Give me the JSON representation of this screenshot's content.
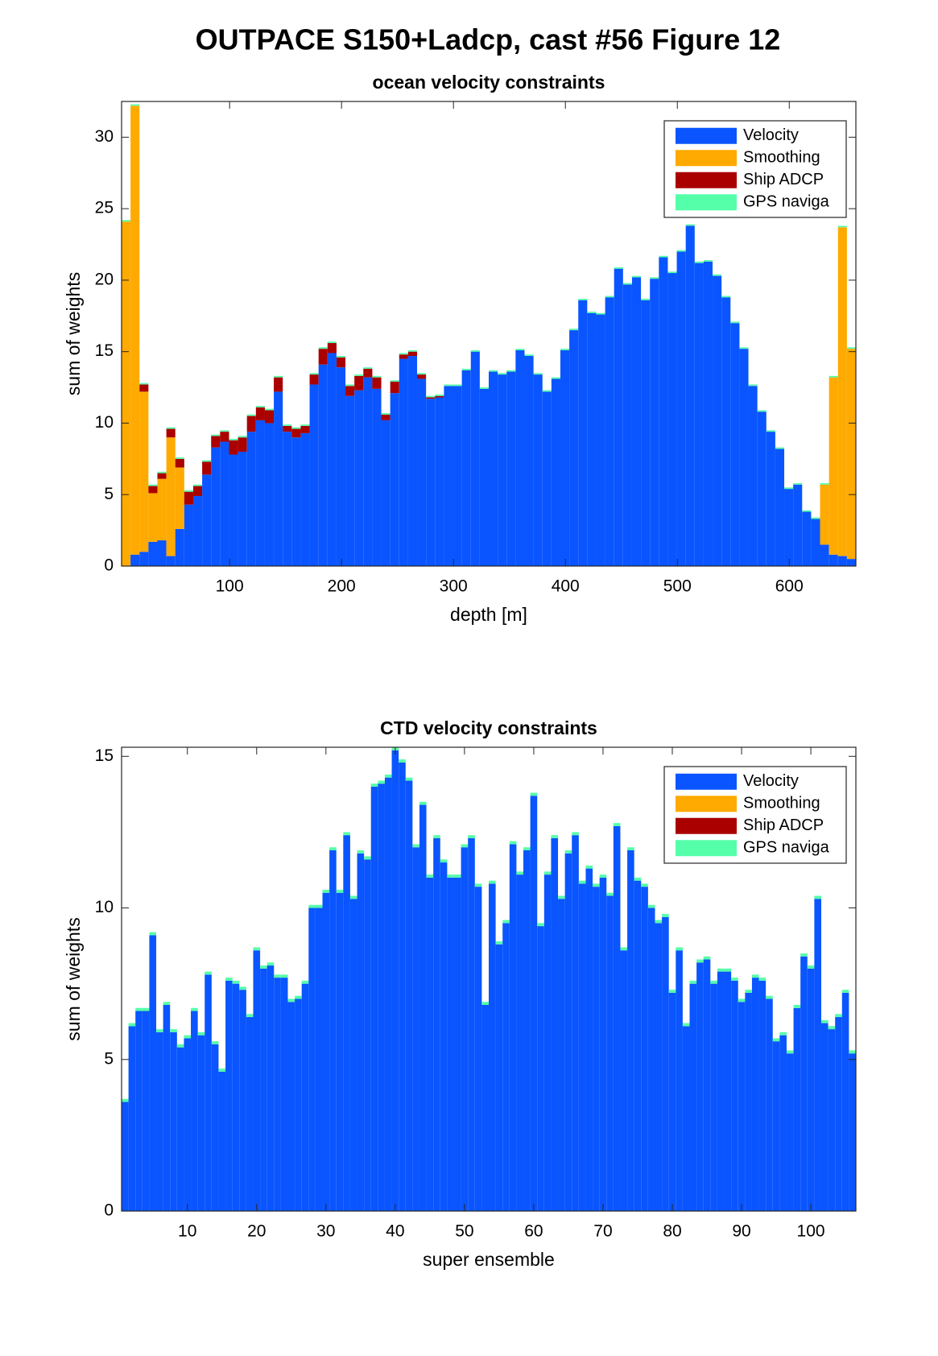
{
  "title": "OUTPACE S150+Ladcp, cast #56  Figure 12",
  "chart_data": [
    {
      "type": "histogram",
      "stacked": true,
      "title": "ocean velocity constraints",
      "xlabel": "depth [m]",
      "ylabel": "sum of weights",
      "bins": [
        3.5,
        11.5,
        19.5,
        27.5,
        35.5,
        43.5,
        51.5,
        59.5,
        67.5,
        75.5,
        83.5,
        91.5,
        99.5,
        107.5,
        115.5,
        123.5,
        131.5,
        139.5,
        147.5,
        155.5,
        163.5,
        171.5,
        179.5,
        187.5,
        195.5,
        203.5,
        211.5,
        219.5,
        227.5,
        235.5,
        243.5,
        251.5,
        259.5,
        267.5,
        275.5,
        283.5,
        291.5,
        299.5,
        307.5,
        315.5,
        323.5,
        331.5,
        339.5,
        347.5,
        355.5,
        363.5,
        371.5,
        379.5,
        387.5,
        395.5,
        403.5,
        411.5,
        419.5,
        427.5,
        435.5,
        443.5,
        451.5,
        459.5,
        467.5,
        475.5,
        483.5,
        491.5,
        499.5,
        507.5,
        515.5,
        523.5,
        531.5,
        539.5,
        547.5,
        555.5,
        563.5,
        571.5,
        579.5,
        587.5,
        595.5,
        603.5,
        611.5,
        619.5,
        627.5,
        635.5,
        643.5,
        651.5,
        659.5
      ],
      "series": [
        {
          "name": "Velocity",
          "color": "#0a55ff",
          "values": [
            0,
            0.8,
            1.0,
            1.7,
            1.8,
            0.7,
            2.6,
            4.3,
            4.9,
            6.4,
            8.3,
            8.7,
            7.8,
            8.0,
            9.4,
            10.2,
            10.0,
            12.2,
            9.4,
            9.0,
            9.3,
            12.7,
            14.1,
            14.9,
            13.9,
            11.9,
            12.3,
            13.2,
            12.4,
            10.2,
            12.1,
            14.5,
            14.7,
            13.1,
            11.7,
            11.8,
            12.6,
            12.6,
            13.7,
            15.0,
            12.4,
            13.6,
            13.4,
            13.6,
            15.1,
            14.7,
            13.4,
            12.2,
            13.1,
            15.1,
            16.5,
            18.6,
            17.7,
            17.6,
            18.8,
            20.8,
            19.7,
            20.2,
            18.6,
            20.1,
            21.6,
            20.5,
            22.0,
            23.8,
            21.2,
            21.3,
            20.3,
            18.8,
            17.0,
            15.2,
            12.6,
            10.8,
            9.4,
            8.2,
            5.4,
            5.7,
            3.8,
            3.3,
            1.5,
            0.8,
            0.7,
            0.5
          ]
        },
        {
          "name": "Smoothing",
          "color": "#ffaa00",
          "values": [
            24.1,
            31.4,
            11.2,
            3.4,
            4.3,
            8.3,
            4.3,
            0,
            0,
            0,
            0,
            0,
            0,
            0,
            0,
            0,
            0,
            0,
            0,
            0,
            0,
            0,
            0,
            0,
            0,
            0,
            0,
            0,
            0,
            0,
            0,
            0,
            0,
            0,
            0,
            0,
            0,
            0,
            0,
            0,
            0,
            0,
            0,
            0,
            0,
            0,
            0,
            0,
            0,
            0,
            0,
            0,
            0,
            0,
            0,
            0,
            0,
            0,
            0,
            0,
            0,
            0,
            0,
            0,
            0,
            0,
            0,
            0,
            0,
            0,
            0,
            0,
            0,
            0,
            0,
            0,
            0,
            0,
            4.2,
            12.4,
            23.0,
            14.7
          ]
        },
        {
          "name": "Ship ADCP",
          "color": "#aa0000",
          "values": [
            0,
            0,
            0.5,
            0.5,
            0.4,
            0.6,
            0.6,
            0.9,
            0.7,
            0.9,
            0.8,
            0.7,
            1.0,
            1.0,
            1.1,
            0.9,
            0.9,
            1.0,
            0.4,
            0.6,
            0.5,
            0.7,
            1.1,
            0.7,
            0.7,
            0.7,
            1.0,
            0.6,
            0.8,
            0.4,
            0.8,
            0.3,
            0.3,
            0.3,
            0.1,
            0.1,
            0,
            0,
            0,
            0,
            0,
            0,
            0,
            0,
            0,
            0,
            0,
            0,
            0,
            0,
            0,
            0,
            0,
            0,
            0,
            0,
            0,
            0,
            0,
            0,
            0,
            0,
            0,
            0,
            0,
            0,
            0,
            0,
            0,
            0,
            0,
            0,
            0,
            0,
            0,
            0,
            0,
            0,
            0,
            0,
            0,
            0
          ]
        },
        {
          "name": "GPS naviga",
          "color": "#55ffaa",
          "values": [
            0.1,
            0.1,
            0.1,
            0.1,
            0.1,
            0.1,
            0.1,
            0.1,
            0.1,
            0.1,
            0.1,
            0.1,
            0.1,
            0.1,
            0.1,
            0.1,
            0.1,
            0.1,
            0.1,
            0.1,
            0.1,
            0.1,
            0.1,
            0.1,
            0.1,
            0.1,
            0.1,
            0.1,
            0.1,
            0.1,
            0.1,
            0.1,
            0.1,
            0.1,
            0.1,
            0.1,
            0.1,
            0.1,
            0.1,
            0.1,
            0.1,
            0.1,
            0.1,
            0.1,
            0.1,
            0.1,
            0.1,
            0.1,
            0.1,
            0.1,
            0.1,
            0.1,
            0.1,
            0.1,
            0.1,
            0.1,
            0.1,
            0.1,
            0.1,
            0.1,
            0.1,
            0.1,
            0.1,
            0.1,
            0.1,
            0.1,
            0.1,
            0.1,
            0.1,
            0.1,
            0.1,
            0.1,
            0.1,
            0.1,
            0.1,
            0.1,
            0.1,
            0.1,
            0.1,
            0.1,
            0.1,
            0.1
          ]
        }
      ],
      "xlim": [
        3.5,
        659.5
      ],
      "xticks": [
        100,
        200,
        300,
        400,
        500,
        600
      ],
      "ylim": [
        0,
        32.5
      ],
      "yticks": [
        0,
        5,
        10,
        15,
        20,
        25,
        30
      ],
      "legend": "northeast",
      "grid": false
    },
    {
      "type": "bar",
      "stacked": true,
      "title": "CTD velocity constraints",
      "xlabel": "super ensemble",
      "ylabel": "sum of weights",
      "x": [
        1,
        2,
        3,
        4,
        5,
        6,
        7,
        8,
        9,
        10,
        11,
        12,
        13,
        14,
        15,
        16,
        17,
        18,
        19,
        20,
        21,
        22,
        23,
        24,
        25,
        26,
        27,
        28,
        29,
        30,
        31,
        32,
        33,
        34,
        35,
        36,
        37,
        38,
        39,
        40,
        41,
        42,
        43,
        44,
        45,
        46,
        47,
        48,
        49,
        50,
        51,
        52,
        53,
        54,
        55,
        56,
        57,
        58,
        59,
        60,
        61,
        62,
        63,
        64,
        65,
        66,
        67,
        68,
        69,
        70,
        71,
        72,
        73,
        74,
        75,
        76,
        77,
        78,
        79,
        80,
        81,
        82,
        83,
        84,
        85,
        86,
        87,
        88,
        89,
        90,
        91,
        92,
        93,
        94,
        95,
        96,
        97,
        98,
        99,
        100,
        101,
        102,
        103,
        104,
        105,
        106
      ],
      "series": [
        {
          "name": "Velocity",
          "color": "#0a55ff",
          "values": [
            3.6,
            6.1,
            6.6,
            6.6,
            9.1,
            5.9,
            6.8,
            5.9,
            5.4,
            5.7,
            6.6,
            5.8,
            7.8,
            5.5,
            4.6,
            7.6,
            7.5,
            7.3,
            6.4,
            8.6,
            8.0,
            8.1,
            7.7,
            7.7,
            6.9,
            7.0,
            7.5,
            10.0,
            10.0,
            10.5,
            11.9,
            10.5,
            12.4,
            10.3,
            11.8,
            11.6,
            14.0,
            14.1,
            14.3,
            15.2,
            14.8,
            14.2,
            12.0,
            13.4,
            11.0,
            12.3,
            11.5,
            11.0,
            11.0,
            12.0,
            12.3,
            10.7,
            6.8,
            10.8,
            8.8,
            9.5,
            12.1,
            11.1,
            11.9,
            13.7,
            9.4,
            11.1,
            12.3,
            10.3,
            11.8,
            12.4,
            10.8,
            11.3,
            10.7,
            11.0,
            10.4,
            12.7,
            8.6,
            11.9,
            10.9,
            10.7,
            10.0,
            9.5,
            9.7,
            7.2,
            8.6,
            6.1,
            7.5,
            8.2,
            8.3,
            7.5,
            7.9,
            7.9,
            7.6,
            6.9,
            7.2,
            7.7,
            7.6,
            7.0,
            5.6,
            5.8,
            5.2,
            6.7,
            8.4,
            8.0,
            10.3,
            6.2,
            6.0,
            6.4,
            7.2,
            5.2
          ]
        },
        {
          "name": "Smoothing",
          "color": "#ffaa00",
          "values": [
            0,
            0,
            0,
            0,
            0,
            0,
            0,
            0,
            0,
            0,
            0,
            0,
            0,
            0,
            0,
            0,
            0,
            0,
            0,
            0,
            0,
            0,
            0,
            0,
            0,
            0,
            0,
            0,
            0,
            0,
            0,
            0,
            0,
            0,
            0,
            0,
            0,
            0,
            0,
            0,
            0,
            0,
            0,
            0,
            0,
            0,
            0,
            0,
            0,
            0,
            0,
            0,
            0,
            0,
            0,
            0,
            0,
            0,
            0,
            0,
            0,
            0,
            0,
            0,
            0,
            0,
            0,
            0,
            0,
            0,
            0,
            0,
            0,
            0,
            0,
            0,
            0,
            0,
            0,
            0,
            0,
            0,
            0,
            0,
            0,
            0,
            0,
            0,
            0,
            0,
            0,
            0,
            0,
            0,
            0,
            0,
            0,
            0,
            0,
            0,
            0,
            0,
            0,
            0,
            0,
            0
          ]
        },
        {
          "name": "Ship ADCP",
          "color": "#aa0000",
          "values": [
            0,
            0,
            0,
            0,
            0,
            0,
            0,
            0,
            0,
            0,
            0,
            0,
            0,
            0,
            0,
            0,
            0,
            0,
            0,
            0,
            0,
            0,
            0,
            0,
            0,
            0,
            0,
            0,
            0,
            0,
            0,
            0,
            0,
            0,
            0,
            0,
            0,
            0,
            0,
            0,
            0,
            0,
            0,
            0,
            0,
            0,
            0,
            0,
            0,
            0,
            0,
            0,
            0,
            0,
            0,
            0,
            0,
            0,
            0,
            0,
            0,
            0,
            0,
            0,
            0,
            0,
            0,
            0,
            0,
            0,
            0,
            0,
            0,
            0,
            0,
            0,
            0,
            0,
            0,
            0,
            0,
            0,
            0,
            0,
            0,
            0,
            0,
            0,
            0,
            0,
            0,
            0,
            0,
            0,
            0,
            0,
            0,
            0,
            0,
            0,
            0,
            0,
            0,
            0,
            0,
            0
          ]
        },
        {
          "name": "GPS naviga",
          "color": "#55ffaa",
          "values": [
            0.1,
            0.1,
            0.1,
            0.1,
            0.1,
            0.1,
            0.1,
            0.1,
            0.1,
            0.1,
            0.1,
            0.1,
            0.1,
            0.1,
            0.1,
            0.1,
            0.1,
            0.1,
            0.1,
            0.1,
            0.1,
            0.1,
            0.1,
            0.1,
            0.1,
            0.1,
            0.1,
            0.1,
            0.1,
            0.1,
            0.1,
            0.1,
            0.1,
            0.1,
            0.1,
            0.1,
            0.1,
            0.1,
            0.1,
            0.1,
            0.1,
            0.1,
            0.1,
            0.1,
            0.1,
            0.1,
            0.1,
            0.1,
            0.1,
            0.1,
            0.1,
            0.1,
            0.1,
            0.1,
            0.1,
            0.1,
            0.1,
            0.1,
            0.1,
            0.1,
            0.1,
            0.1,
            0.1,
            0.1,
            0.1,
            0.1,
            0.1,
            0.1,
            0.1,
            0.1,
            0.1,
            0.1,
            0.1,
            0.1,
            0.1,
            0.1,
            0.1,
            0.1,
            0.1,
            0.1,
            0.1,
            0.1,
            0.1,
            0.1,
            0.1,
            0.1,
            0.1,
            0.1,
            0.1,
            0.1,
            0.1,
            0.1,
            0.1,
            0.1,
            0.1,
            0.1,
            0.1,
            0.1,
            0.1,
            0.1,
            0.1,
            0.1,
            0.1,
            0.1,
            0.1,
            0.1
          ]
        }
      ],
      "xlim": [
        0.5,
        106.5
      ],
      "xticks": [
        10,
        20,
        30,
        40,
        50,
        60,
        70,
        80,
        90,
        100
      ],
      "ylim": [
        0,
        15.3
      ],
      "yticks": [
        0,
        5,
        10,
        15
      ],
      "legend": "northeast",
      "grid": false
    }
  ]
}
